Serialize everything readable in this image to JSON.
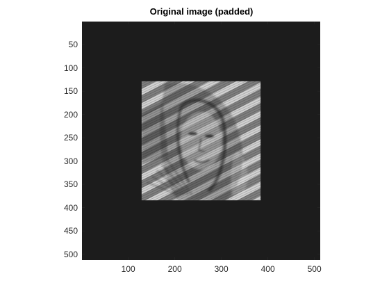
{
  "figure": {
    "title": "Original image (padded)",
    "background_color": "#1c1c1c"
  },
  "axes": {
    "xlim": [
      0.5,
      512.5
    ],
    "ylim": [
      0.5,
      512.5
    ],
    "y_direction": "reverse",
    "xticks": [
      100,
      200,
      300,
      400,
      500
    ],
    "yticks": [
      50,
      100,
      150,
      200,
      250,
      300,
      350,
      400,
      450,
      500
    ],
    "xtick_labels": [
      "100",
      "200",
      "300",
      "400",
      "500"
    ],
    "ytick_labels": [
      "50",
      "100",
      "150",
      "200",
      "250",
      "300",
      "350",
      "400",
      "450",
      "500"
    ],
    "tick_label_color": "#262626",
    "tick_color": "#262626"
  },
  "image": {
    "type": "grayscale image",
    "padded_size": [
      512,
      512
    ],
    "content_region": {
      "x": [
        129,
        384
      ],
      "y": [
        129,
        384
      ]
    },
    "pad_color": "#1c1c1c",
    "content_description_icon": "face-with-diagonal-stripes-image"
  }
}
